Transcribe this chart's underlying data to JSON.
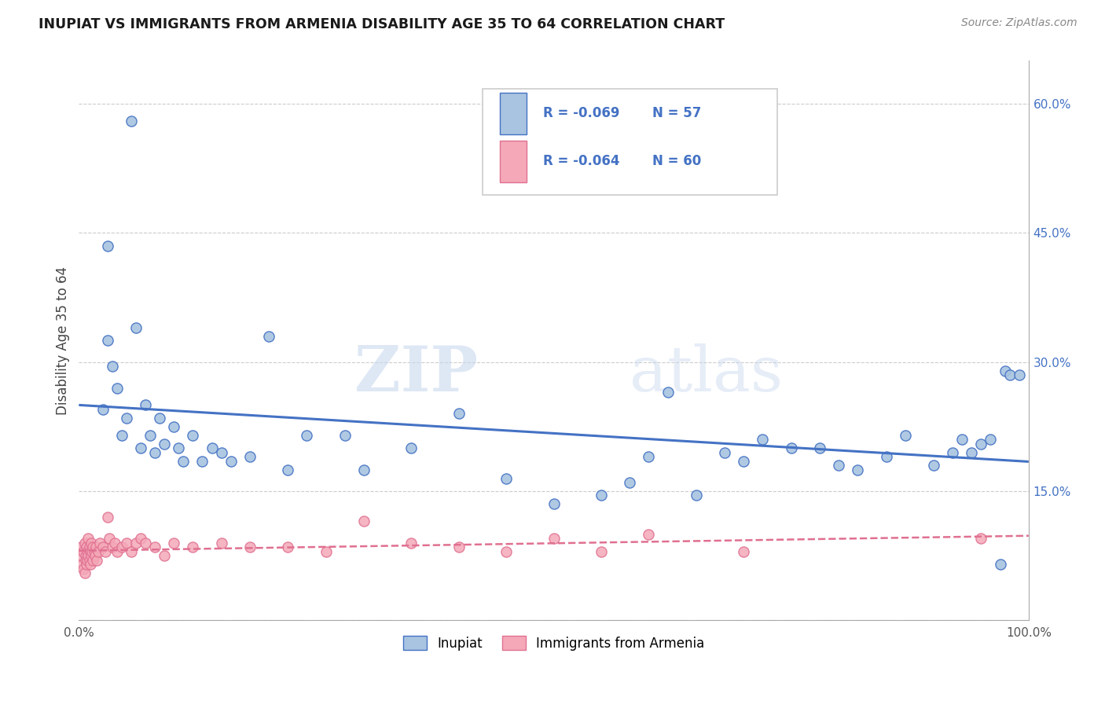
{
  "title": "INUPIAT VS IMMIGRANTS FROM ARMENIA DISABILITY AGE 35 TO 64 CORRELATION CHART",
  "source": "Source: ZipAtlas.com",
  "ylabel": "Disability Age 35 to 64",
  "xlim": [
    0.0,
    1.0
  ],
  "ylim": [
    0.0,
    0.65
  ],
  "xticks": [
    0.0,
    0.1,
    0.2,
    0.3,
    0.4,
    0.5,
    0.6,
    0.7,
    0.8,
    0.9,
    1.0
  ],
  "xticklabels": [
    "0.0%",
    "",
    "",
    "",
    "",
    "",
    "",
    "",
    "",
    "",
    "100.0%"
  ],
  "yticks_right": [
    0.0,
    0.15,
    0.3,
    0.45,
    0.6
  ],
  "ytick_labels_right": [
    "",
    "15.0%",
    "30.0%",
    "45.0%",
    "60.0%"
  ],
  "legend_r1": "-0.069",
  "legend_n1": "57",
  "legend_r2": "-0.064",
  "legend_n2": "60",
  "inupiat_color": "#a8c4e0",
  "armenia_color": "#f4a8b8",
  "inupiat_line_color": "#4472c4",
  "armenia_line_color": "#e07090",
  "watermark_zip": "ZIP",
  "watermark_atlas": "atlas",
  "inupiat_scatter_x": [
    0.025,
    0.03,
    0.03,
    0.035,
    0.04,
    0.045,
    0.05,
    0.055,
    0.06,
    0.065,
    0.07,
    0.075,
    0.08,
    0.085,
    0.09,
    0.1,
    0.105,
    0.11,
    0.12,
    0.13,
    0.14,
    0.15,
    0.16,
    0.18,
    0.2,
    0.22,
    0.24,
    0.28,
    0.3,
    0.35,
    0.4,
    0.45,
    0.5,
    0.55,
    0.58,
    0.6,
    0.62,
    0.65,
    0.68,
    0.7,
    0.72,
    0.75,
    0.78,
    0.8,
    0.82,
    0.85,
    0.87,
    0.9,
    0.92,
    0.93,
    0.94,
    0.95,
    0.96,
    0.97,
    0.975,
    0.98,
    0.99
  ],
  "inupiat_scatter_y": [
    0.245,
    0.435,
    0.325,
    0.295,
    0.27,
    0.215,
    0.235,
    0.58,
    0.34,
    0.2,
    0.25,
    0.215,
    0.195,
    0.235,
    0.205,
    0.225,
    0.2,
    0.185,
    0.215,
    0.185,
    0.2,
    0.195,
    0.185,
    0.19,
    0.33,
    0.175,
    0.215,
    0.215,
    0.175,
    0.2,
    0.24,
    0.165,
    0.135,
    0.145,
    0.16,
    0.19,
    0.265,
    0.145,
    0.195,
    0.185,
    0.21,
    0.2,
    0.2,
    0.18,
    0.175,
    0.19,
    0.215,
    0.18,
    0.195,
    0.21,
    0.195,
    0.205,
    0.21,
    0.065,
    0.29,
    0.285,
    0.285
  ],
  "armenia_scatter_x": [
    0.002,
    0.003,
    0.004,
    0.005,
    0.005,
    0.006,
    0.006,
    0.007,
    0.007,
    0.008,
    0.008,
    0.009,
    0.009,
    0.01,
    0.01,
    0.011,
    0.011,
    0.012,
    0.012,
    0.013,
    0.013,
    0.014,
    0.015,
    0.015,
    0.016,
    0.017,
    0.018,
    0.019,
    0.02,
    0.022,
    0.025,
    0.028,
    0.03,
    0.032,
    0.035,
    0.038,
    0.04,
    0.045,
    0.05,
    0.055,
    0.06,
    0.065,
    0.07,
    0.08,
    0.09,
    0.1,
    0.12,
    0.15,
    0.18,
    0.22,
    0.26,
    0.3,
    0.35,
    0.4,
    0.45,
    0.5,
    0.55,
    0.6,
    0.7,
    0.95
  ],
  "armenia_scatter_y": [
    0.085,
    0.075,
    0.065,
    0.08,
    0.06,
    0.09,
    0.055,
    0.075,
    0.07,
    0.085,
    0.065,
    0.08,
    0.07,
    0.095,
    0.075,
    0.085,
    0.07,
    0.08,
    0.065,
    0.09,
    0.075,
    0.08,
    0.085,
    0.07,
    0.08,
    0.075,
    0.085,
    0.07,
    0.08,
    0.09,
    0.085,
    0.08,
    0.12,
    0.095,
    0.085,
    0.09,
    0.08,
    0.085,
    0.09,
    0.08,
    0.09,
    0.095,
    0.09,
    0.085,
    0.075,
    0.09,
    0.085,
    0.09,
    0.085,
    0.085,
    0.08,
    0.115,
    0.09,
    0.085,
    0.08,
    0.095,
    0.08,
    0.1,
    0.08,
    0.095
  ]
}
